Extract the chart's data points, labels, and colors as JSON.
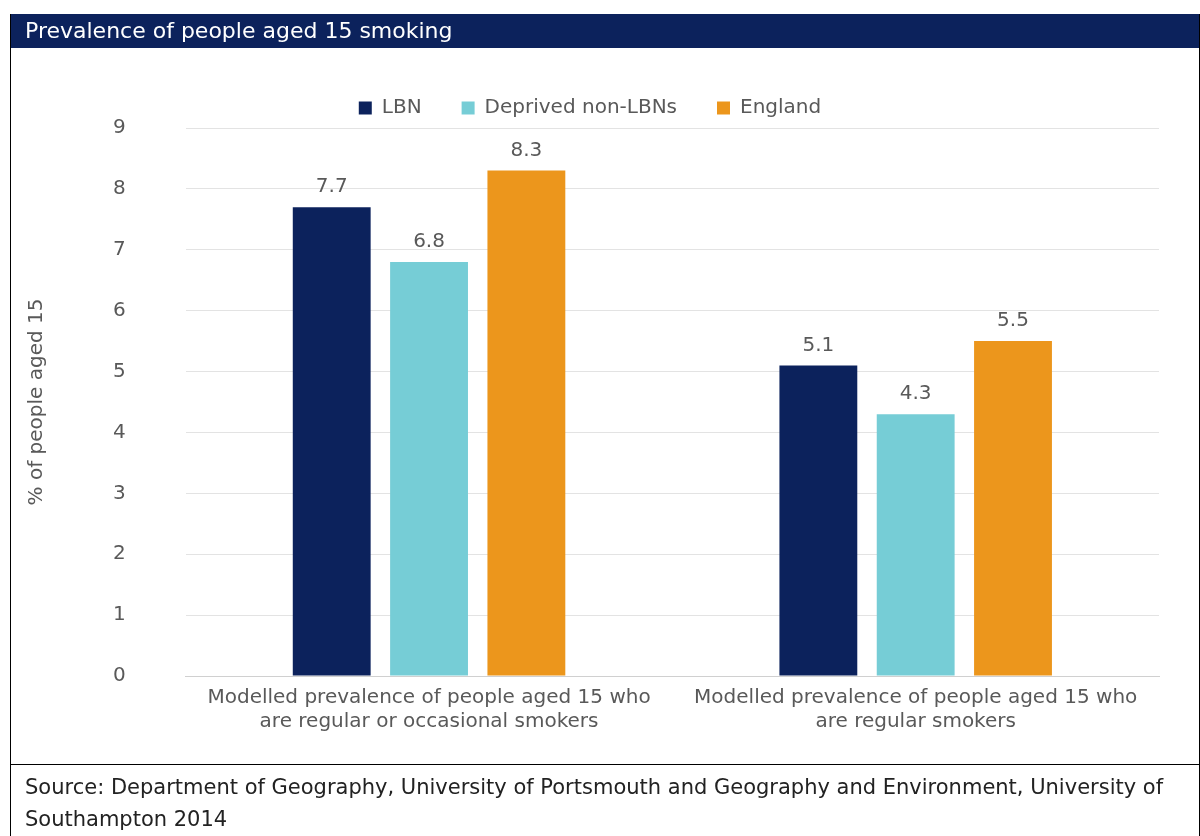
{
  "chart_data": {
    "type": "bar",
    "title": "Prevalence of people aged 15 smoking",
    "ylabel": "% of people aged 15",
    "categories": [
      "Modelled prevalence of people aged 15 who are regular or occasional smokers",
      "Modelled prevalence of people aged 15 who are regular smokers"
    ],
    "series": [
      {
        "name": "LBN",
        "color": "#0c225c",
        "values": [
          7.7,
          5.1
        ]
      },
      {
        "name": "Deprived non-LBNs",
        "color": "#76cdd6",
        "values": [
          6.8,
          4.3
        ]
      },
      {
        "name": "England",
        "color": "#ec961c",
        "values": [
          8.3,
          5.5
        ]
      }
    ],
    "ylim": [
      0,
      9
    ],
    "yticks": [
      0,
      1,
      2,
      3,
      4,
      5,
      6,
      7,
      8,
      9
    ],
    "grid": "y",
    "legend": "top",
    "data_labels": true,
    "annotations": [
      "Source: Department of Geography, University of Portsmouth and Geography and Environment, University of Southampton 2014"
    ]
  }
}
